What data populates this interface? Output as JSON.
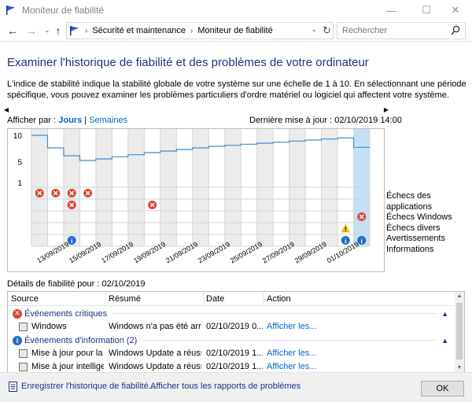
{
  "window": {
    "title": "Moniteur de fiabilité"
  },
  "nav": {
    "breadcrumb": [
      "Sécurité et maintenance",
      "Moniteur de fiabilité"
    ],
    "search_placeholder": "Rechercher"
  },
  "page": {
    "heading": "Examiner l'historique de fiabilité et des problèmes de votre ordinateur",
    "description": "L'indice de stabilité indique la stabilité globale de votre système sur une échelle de 1 à 10. En sélectionnant une période spécifique, vous pouvez examiner les problèmes particuliers d'ordre matériel ou logiciel qui affectent votre système.",
    "view_by_label": "Afficher par :",
    "view_days": "Jours",
    "view_sep": "|",
    "view_weeks": "Semaines",
    "last_update": "Dernière mise à jour : 02/10/2019 14:00"
  },
  "chart_data": {
    "type": "line",
    "ylim": [
      1,
      10
    ],
    "yticks": [
      "10",
      "5",
      "1"
    ],
    "x": [
      "12/09",
      "13/09",
      "14/09",
      "15/09",
      "16/09",
      "17/09",
      "18/09",
      "19/09",
      "20/09",
      "21/09",
      "22/09",
      "23/09",
      "24/09",
      "25/09",
      "26/09",
      "27/09",
      "28/09",
      "29/09",
      "30/09",
      "01/10",
      "02/10"
    ],
    "xtick_labels": [
      "13/09/2019",
      "15/09/2019",
      "17/09/2019",
      "19/09/2019",
      "21/09/2019",
      "23/09/2019",
      "25/09/2019",
      "27/09/2019",
      "29/09/2019",
      "01/10/2019"
    ],
    "series": [
      {
        "values": [
          10,
          7.6,
          6.1,
          5.2,
          5.5,
          5.9,
          6.3,
          6.7,
          7.0,
          7.3,
          7.6,
          7.9,
          8.1,
          8.3,
          8.5,
          8.7,
          8.9,
          9.1,
          9.3,
          9.5,
          7.7
        ]
      }
    ],
    "selected_index": 20,
    "row_labels": [
      "Échecs des applications",
      "Échecs Windows",
      "Échecs divers",
      "Avertissements",
      "Informations"
    ],
    "events": [
      {
        "x": "12/09",
        "row": 0,
        "kind": "error"
      },
      {
        "x": "13/09",
        "row": 0,
        "kind": "error"
      },
      {
        "x": "14/09",
        "row": 0,
        "kind": "error"
      },
      {
        "x": "14/09",
        "row": 1,
        "kind": "error"
      },
      {
        "x": "15/09",
        "row": 0,
        "kind": "error"
      },
      {
        "x": "19/09",
        "row": 1,
        "kind": "error"
      },
      {
        "x": "02/10",
        "row": 2,
        "kind": "error"
      },
      {
        "x": "01/10",
        "row": 3,
        "kind": "warning"
      },
      {
        "x": "14/09",
        "row": 4,
        "kind": "info"
      },
      {
        "x": "01/10",
        "row": 4,
        "kind": "info"
      },
      {
        "x": "02/10",
        "row": 4,
        "kind": "info"
      }
    ],
    "colors": {
      "line": "#3c8dd3",
      "selected": "#c5dff5",
      "error": "#d9463a",
      "warning": "#f4c221",
      "info": "#1f6fc4"
    }
  },
  "details": {
    "title": "Détails de fiabilité pour : 02/10/2019",
    "columns": {
      "source": "Source",
      "summary": "Résumé",
      "date": "Date",
      "action": "Action"
    },
    "group_critical": "Événements critiques",
    "group_info": "Événements d'information (2)",
    "rows": [
      {
        "source": "Windows",
        "summary": "Windows n'a pas été arrêt...",
        "date": "02/10/2019 0...",
        "action": "Afficher les..."
      },
      {
        "source": "Mise à jour pour la ...",
        "summary": "Windows Update a réussi",
        "date": "02/10/2019 1...",
        "action": "Afficher les..."
      },
      {
        "source": "Mise à jour intellige...",
        "summary": "Windows Update a réussi",
        "date": "02/10/2019 1...",
        "action": "Afficher les..."
      }
    ]
  },
  "footer": {
    "save_history": "Enregistrer l'historique de fiabilité...",
    "view_all": "Afficher tous les rapports de problèmes",
    "ok": "OK"
  }
}
